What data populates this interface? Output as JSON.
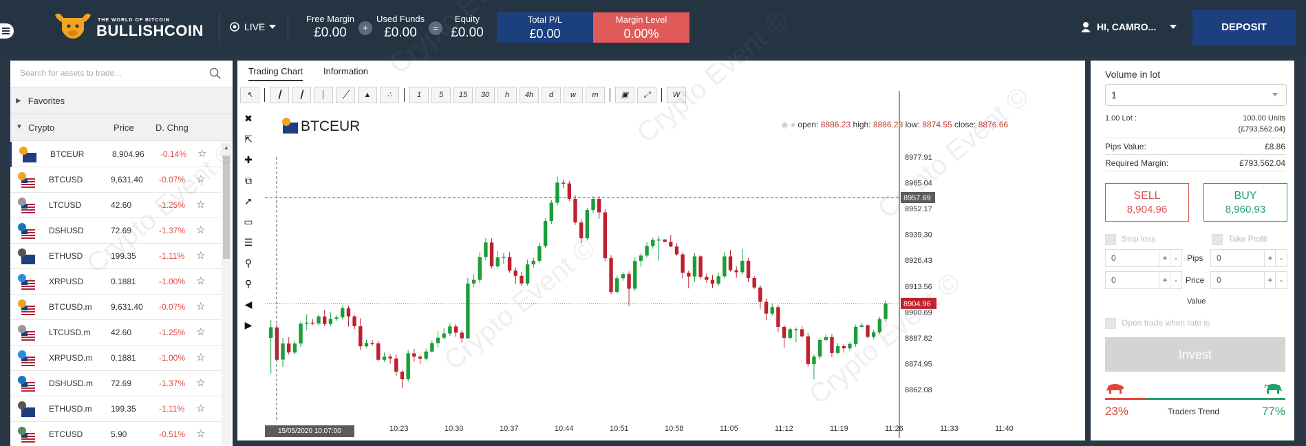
{
  "header": {
    "logo_title": "BULLISHCOIN",
    "logo_subtitle": "THE WORLD OF BITCOIN",
    "mode": "LIVE",
    "free_margin_label": "Free Margin",
    "free_margin": "£0.00",
    "used_funds_label": "Used Funds",
    "used_funds": "£0.00",
    "equity_label": "Equity",
    "equity": "£0.00",
    "plus": "+",
    "equals": "=",
    "total_pl_label": "Total P/L",
    "total_pl": "£0.00",
    "margin_level_label": "Margin Level",
    "margin_level": "0.00%",
    "user": "HI, CAMRO...",
    "deposit": "DEPOSIT",
    "colors": {
      "bar": "#253443",
      "navy": "#1c3f7d",
      "red": "#e05a5a"
    }
  },
  "assets": {
    "search_placeholder": "Search for assets to trade...",
    "favorites": "Favorites",
    "group": "Crypto",
    "col_price": "Price",
    "col_change": "D. Chng",
    "rows": [
      {
        "symbol": "BTCEUR",
        "price": "8,904.96",
        "change": "-0.14%",
        "icon": "bitcoin-eu-flag"
      },
      {
        "symbol": "BTCUSD",
        "price": "9,631.40",
        "change": "-0.07%",
        "icon": "bitcoin-us-flag"
      },
      {
        "symbol": "LTCUSD",
        "price": "42.60",
        "change": "-1.25%",
        "icon": "litecoin-us-flag"
      },
      {
        "symbol": "DSHUSD",
        "price": "72.69",
        "change": "-1.37%",
        "icon": "dash-us-flag"
      },
      {
        "symbol": "ETHUSD",
        "price": "199.35",
        "change": "-1.11%",
        "icon": "ethereum-us-flag"
      },
      {
        "symbol": "XRPUSD",
        "price": "0.1881",
        "change": "-1.00%",
        "icon": "ripple-us-flag"
      },
      {
        "symbol": "BTCUSD.m",
        "price": "9,631.40",
        "change": "-0.07%",
        "icon": "bitcoin-us-flag"
      },
      {
        "symbol": "LTCUSD.m",
        "price": "42.60",
        "change": "-1.25%",
        "icon": "litecoin-us-flag"
      },
      {
        "symbol": "XRPUSD.m",
        "price": "0.1881",
        "change": "-1.00%",
        "icon": "ripple-us-flag"
      },
      {
        "symbol": "DSHUSD.m",
        "price": "72.69",
        "change": "-1.37%",
        "icon": "dash-us-flag"
      },
      {
        "symbol": "ETHUSD.m",
        "price": "199.35",
        "change": "-1.11%",
        "icon": "ethereum-us-flag"
      },
      {
        "symbol": "ETCUSD",
        "price": "5.90",
        "change": "-0.51%",
        "icon": "etc-us-flag"
      }
    ]
  },
  "chart": {
    "tabs": [
      "Trading Chart",
      "Information"
    ],
    "timeframes": [
      "1",
      "5",
      "15",
      "30",
      "h",
      "4h",
      "d",
      "w",
      "m"
    ],
    "symbol": "BTCEUR",
    "ohlc_open_label": "open:",
    "ohlc_open": "8886.23",
    "ohlc_high_label": "high:",
    "ohlc_high": "8886.23",
    "ohlc_low_label": "low:",
    "ohlc_low": "8874.55",
    "ohlc_close_label": "close:",
    "ohlc_close": "8876.66",
    "cursor_date": "15/05/2020 10:07:00",
    "cursor_price": "8957.69",
    "last_price": "8904.96",
    "y_ticks": [
      "8977.91",
      "8965.04",
      "8952.17",
      "8939.30",
      "8926.43",
      "8913.56",
      "8900.69",
      "8887.82",
      "8874.95",
      "8862.08"
    ],
    "x_ticks": [
      "10:23",
      "10:30",
      "10:37",
      "10:44",
      "10:51",
      "10:58",
      "11:05",
      "11:12",
      "11:19",
      "11:26",
      "11:33",
      "11:40"
    ],
    "colors": {
      "up": "#1a9e3a",
      "down": "#c0202e"
    }
  },
  "chart_data": {
    "type": "candlestick",
    "y_range": [
      8862.08,
      8977.91
    ],
    "candles": [
      [
        8887.8,
        8893.1,
        8870,
        8896.7
      ],
      [
        8893,
        8876.9,
        8876,
        8894.6
      ],
      [
        8877,
        8885,
        8873.3,
        8887.8
      ],
      [
        8885,
        8880.6,
        8879.5,
        8888.1
      ],
      [
        8880.5,
        8885,
        8879.6,
        8886.4
      ],
      [
        8885,
        8894.9,
        8883.3,
        8895.8
      ],
      [
        8895,
        8895.4,
        8891.7,
        8899.6
      ],
      [
        8895.4,
        8894.9,
        8894.2,
        8897.3
      ],
      [
        8895,
        8898.5,
        8893.9,
        8899.4
      ],
      [
        8898.5,
        8894.7,
        8893.7,
        8901.8
      ],
      [
        8894.7,
        8897.3,
        8893.8,
        8900.5
      ],
      [
        8897.3,
        8898,
        8896.4,
        8899
      ],
      [
        8898,
        8902.6,
        8897.1,
        8903.8
      ],
      [
        8902.6,
        8898.5,
        8893.4,
        8903.9
      ],
      [
        8898.5,
        8893.6,
        8892.1,
        8899.2
      ],
      [
        8893.6,
        8883.6,
        8881.7,
        8897.6
      ],
      [
        8883.6,
        8885.3,
        8883,
        8886.9
      ],
      [
        8885.3,
        8885.1,
        8883.8,
        8886.8
      ],
      [
        8885.1,
        8876.9,
        8876.2,
        8886.4
      ],
      [
        8876.9,
        8878.5,
        8875.9,
        8880.5
      ],
      [
        8878.5,
        8877.6,
        8874.9,
        8879.5
      ],
      [
        8877.6,
        8871,
        8868.7,
        8879.6
      ],
      [
        8871,
        8867.2,
        8862.9,
        8871.8
      ],
      [
        8867.2,
        8880.1,
        8866.1,
        8881.7
      ],
      [
        8880.1,
        8878.5,
        8875.9,
        8882.3
      ],
      [
        8878.5,
        8877.5,
        8874.8,
        8879.5
      ],
      [
        8877.5,
        8881,
        8876.6,
        8882.4
      ],
      [
        8881,
        8885.2,
        8880.6,
        8886.6
      ],
      [
        8885.2,
        8887.9,
        8882.9,
        8891.1
      ],
      [
        8887.9,
        8890,
        8887,
        8892.8
      ],
      [
        8890,
        8893.5,
        8888.8,
        8895.1
      ],
      [
        8893.5,
        8890.4,
        8888.4,
        8894.8
      ],
      [
        8890.4,
        8887.6,
        8885.4,
        8891.6
      ],
      [
        8887.6,
        8914.9,
        8887.3,
        8917.7
      ],
      [
        8914.9,
        8916.7,
        8913.2,
        8919.5
      ],
      [
        8916.7,
        8928.1,
        8915.1,
        8930.4
      ],
      [
        8928.1,
        8935.3,
        8926.4,
        8937.4
      ],
      [
        8935.3,
        8923.4,
        8922.3,
        8937.4
      ],
      [
        8923.4,
        8927.9,
        8922.4,
        8931.1
      ],
      [
        8927.9,
        8928.1,
        8924.7,
        8930.1
      ],
      [
        8928.1,
        8921.3,
        8920.2,
        8930.5
      ],
      [
        8921.3,
        8918.7,
        8914.6,
        8922.8
      ],
      [
        8918.7,
        8914.9,
        8913.6,
        8920.7
      ],
      [
        8914.9,
        8924.4,
        8913.9,
        8926.8
      ],
      [
        8924.4,
        8926.2,
        8922.8,
        8927.8
      ],
      [
        8926.2,
        8933.5,
        8925.2,
        8935
      ],
      [
        8933.5,
        8946,
        8932.5,
        8947.3
      ],
      [
        8946,
        8955.1,
        8944.5,
        8956.5
      ],
      [
        8955.1,
        8965.1,
        8953.9,
        8968.2
      ],
      [
        8965.1,
        8964.7,
        8962.3,
        8966.5
      ],
      [
        8964.7,
        8957,
        8955.9,
        8966
      ],
      [
        8957,
        8945.3,
        8944.1,
        8958.9
      ],
      [
        8945.3,
        8937.4,
        8934.9,
        8946.8
      ],
      [
        8937.4,
        8951.5,
        8936.3,
        8952.6
      ],
      [
        8951.5,
        8957,
        8949.9,
        8958.3
      ],
      [
        8957,
        8950.3,
        8947.1,
        8958.3
      ],
      [
        8950.3,
        8927.5,
        8926.1,
        8952
      ],
      [
        8927.5,
        8910.7,
        8909.5,
        8928.9
      ],
      [
        8910.7,
        8917.5,
        8909.9,
        8918.8
      ],
      [
        8917.5,
        8919.6,
        8916.3,
        8920.6
      ],
      [
        8919.6,
        8912.3,
        8903.7,
        8920.9
      ],
      [
        8912.3,
        8926.1,
        8911.3,
        8927.9
      ],
      [
        8926.1,
        8928.8,
        8923,
        8929.9
      ],
      [
        8928.8,
        8933.6,
        8927.8,
        8935.4
      ],
      [
        8933.6,
        8936.5,
        8932.3,
        8937.6
      ],
      [
        8936.5,
        8936.8,
        8926.3,
        8938.4
      ],
      [
        8936.8,
        8935.6,
        8935.4,
        8937
      ],
      [
        8935.6,
        8933.3,
        8933,
        8939.1
      ],
      [
        8933.3,
        8929.4,
        8928.7,
        8935
      ],
      [
        8929.4,
        8920.2,
        8917.4,
        8930.4
      ],
      [
        8920.2,
        8918.4,
        8912.5,
        8921.3
      ],
      [
        8918.4,
        8928.4,
        8915.9,
        8929.9
      ],
      [
        8928.4,
        8918.2,
        8917,
        8929
      ],
      [
        8918.2,
        8916.7,
        8915.4,
        8919.9
      ],
      [
        8916.7,
        8914.7,
        8912.6,
        8919.1
      ],
      [
        8914.7,
        8918.5,
        8913.7,
        8920.3
      ],
      [
        8918.5,
        8928.4,
        8917.6,
        8930.7
      ],
      [
        8928.4,
        8921.5,
        8920.8,
        8931.5
      ],
      [
        8921.5,
        8920.5,
        8917.8,
        8923.5
      ],
      [
        8920.5,
        8926.2,
        8919.3,
        8932
      ],
      [
        8926.2,
        8917.6,
        8915.6,
        8927.6
      ],
      [
        8917.6,
        8912.9,
        8912.2,
        8918.6
      ],
      [
        8912.9,
        8905.8,
        8902.3,
        8914
      ],
      [
        8905.8,
        8899.9,
        8896.6,
        8907.5
      ],
      [
        8899.9,
        8903.1,
        8898.8,
        8905
      ],
      [
        8903.1,
        8893.3,
        8890.7,
        8904.1
      ],
      [
        8893.3,
        8887.8,
        8882.9,
        8894.3
      ],
      [
        8887.8,
        8892.1,
        8887.2,
        8893
      ],
      [
        8892.1,
        8892.1,
        8885.6,
        8893
      ],
      [
        8892.1,
        8888.6,
        8887.9,
        8893.7
      ],
      [
        8888.6,
        8874.8,
        8873.5,
        8890.3
      ],
      [
        8874.8,
        8878.5,
        8867.2,
        8879.5
      ],
      [
        8878.5,
        8886.8,
        8877.2,
        8887.8
      ],
      [
        8886.8,
        8888.2,
        8885.9,
        8889.4
      ],
      [
        8888.2,
        8880.3,
        8878.3,
        8889.8
      ],
      [
        8880.3,
        8883.7,
        8879.8,
        8885.1
      ],
      [
        8883.7,
        8882.6,
        8880.5,
        8884.6
      ],
      [
        8882.6,
        8884.8,
        8881.5,
        8885.7
      ],
      [
        8884.8,
        8893.3,
        8883.3,
        8894.4
      ],
      [
        8893.3,
        8894.1,
        8893,
        8895.2
      ],
      [
        8894.1,
        8888.3,
        8887.6,
        8894.4
      ],
      [
        8888.3,
        8890.6,
        8887.2,
        8891.9
      ],
      [
        8890.6,
        8897.2,
        8889.9,
        8898.3
      ],
      [
        8897.2,
        8904.9,
        8895.6,
        8906.5
      ]
    ]
  },
  "order": {
    "volume_label": "Volume in lot",
    "volume": "1",
    "lot_label": "1.00 Lot :",
    "lot_units": "100.00 Units",
    "lot_value": "(£793,562.04)",
    "pips_label": "Pips Value:",
    "pips_value": "£8.86",
    "margin_label": "Required Margin:",
    "margin_value": "£793,562.04",
    "sell_label": "SELL",
    "sell_price": "8,904.96",
    "buy_label": "BUY",
    "buy_price": "8,960.93",
    "stop_loss": "Stop loss",
    "take_profit": "Take Profit",
    "pips": "Pips",
    "price": "Price",
    "value": "Value",
    "zero": "0",
    "plus": "+",
    "minus": "-",
    "open_trade": "Open trade when rate is",
    "invest": "Invest",
    "bear_pct": "23%",
    "bull_pct": "77%",
    "trend_label": "Traders Trend",
    "bull_fraction": 0.77
  },
  "watermark": "Crypto Event ©"
}
